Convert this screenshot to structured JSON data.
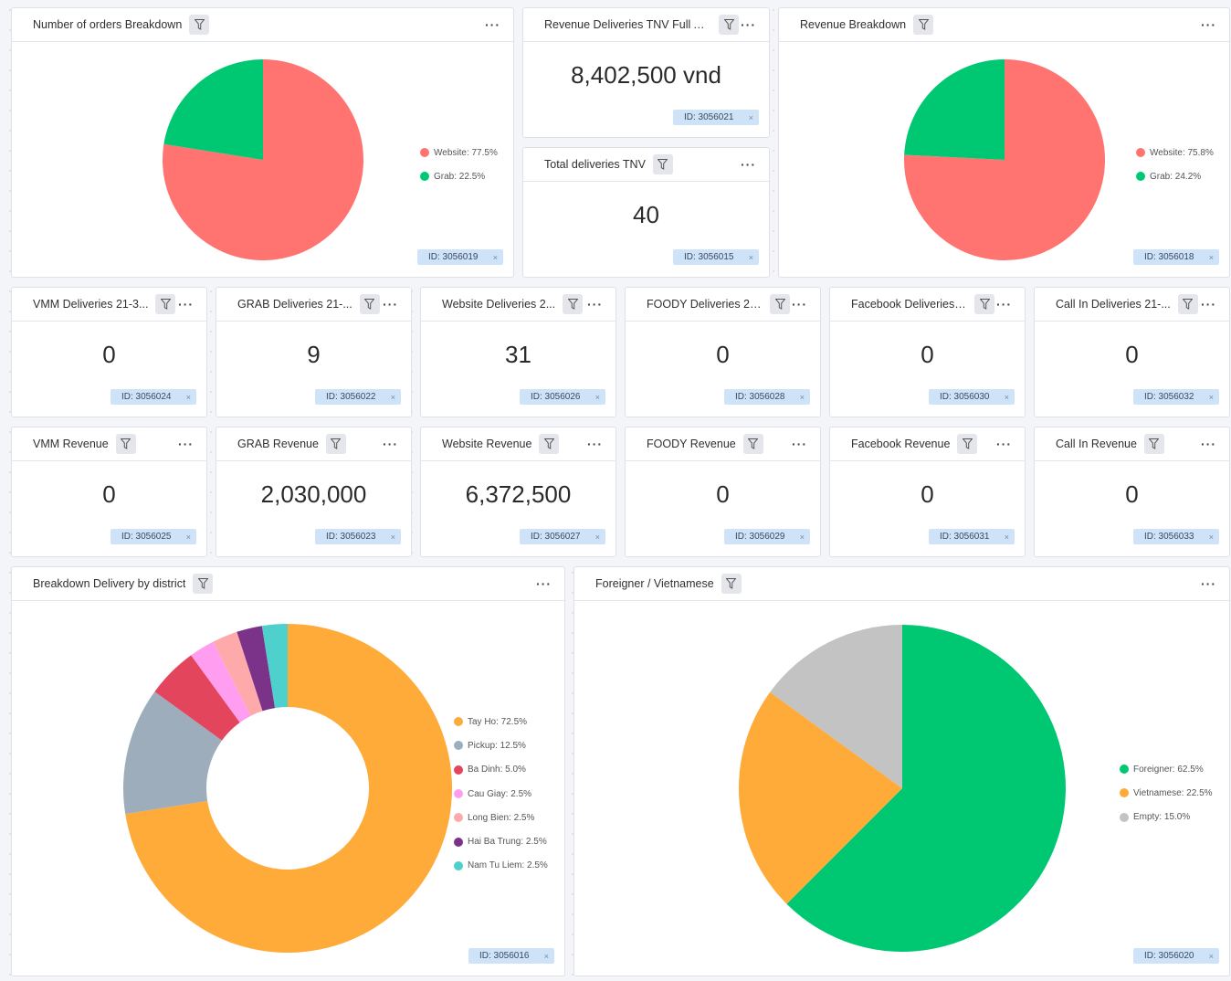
{
  "cards": {
    "orders_breakdown": {
      "title": "Number of orders Breakdown",
      "id_label": "ID: 3056019"
    },
    "revenue_tnv": {
      "title": "Revenue Deliveries TNV Full Ap...",
      "value": "8,402,500 vnd",
      "id_label": "ID: 3056021"
    },
    "total_tnv": {
      "title": "Total deliveries TNV",
      "value": "40",
      "id_label": "ID: 3056015"
    },
    "revenue_breakdown": {
      "title": "Revenue Breakdown",
      "id_label": "ID: 3056018"
    },
    "vmm_deliveries": {
      "title": "VMM Deliveries 21-3...",
      "value": "0",
      "id_label": "ID: 3056024"
    },
    "grab_deliveries": {
      "title": "GRAB Deliveries 21-...",
      "value": "9",
      "id_label": "ID: 3056022"
    },
    "website_deliveries": {
      "title": "Website Deliveries 2...",
      "value": "31",
      "id_label": "ID: 3056026"
    },
    "foody_deliveries": {
      "title": "FOODY Deliveries 21...",
      "value": "0",
      "id_label": "ID: 3056028"
    },
    "facebook_deliveries": {
      "title": "Facebook Deliveries ...",
      "value": "0",
      "id_label": "ID: 3056030"
    },
    "callin_deliveries": {
      "title": "Call In Deliveries 21-...",
      "value": "0",
      "id_label": "ID: 3056032"
    },
    "vmm_revenue": {
      "title": "VMM Revenue",
      "value": "0",
      "id_label": "ID: 3056025"
    },
    "grab_revenue": {
      "title": "GRAB Revenue",
      "value": "2,030,000",
      "id_label": "ID: 3056023"
    },
    "website_revenue": {
      "title": "Website Revenue",
      "value": "6,372,500",
      "id_label": "ID: 3056027"
    },
    "foody_revenue": {
      "title": "FOODY Revenue",
      "value": "0",
      "id_label": "ID: 3056029"
    },
    "facebook_revenue": {
      "title": "Facebook Revenue",
      "value": "0",
      "id_label": "ID: 3056031"
    },
    "callin_revenue": {
      "title": "Call In Revenue",
      "value": "0",
      "id_label": "ID: 3056033"
    },
    "district": {
      "title": "Breakdown Delivery by district",
      "id_label": "ID: 3056016"
    },
    "nationality": {
      "title": "Foreigner / Vietnamese",
      "id_label": "ID: 3056020"
    }
  },
  "icons": {
    "filter": "filter-funnel-icon",
    "more": "more-horizontal-icon",
    "remove": "close-icon"
  },
  "ui_text": {
    "more": "···",
    "remove": "×"
  },
  "chart_data": [
    {
      "type": "pie",
      "card": "orders_breakdown",
      "legend_position": "right",
      "slices": [
        {
          "label": "Website",
          "value": 77.5,
          "legend": "Website: 77.5%",
          "color": "#ff7370"
        },
        {
          "label": "Grab",
          "value": 22.5,
          "legend": "Grab: 22.5%",
          "color": "#00c872"
        }
      ]
    },
    {
      "type": "pie",
      "card": "revenue_breakdown",
      "legend_position": "right",
      "slices": [
        {
          "label": "Website",
          "value": 75.8,
          "legend": "Website: 75.8%",
          "color": "#ff7370"
        },
        {
          "label": "Grab",
          "value": 24.2,
          "legend": "Grab: 24.2%",
          "color": "#00c872"
        }
      ]
    },
    {
      "type": "donut",
      "card": "district",
      "legend_position": "right",
      "slices": [
        {
          "label": "Tay Ho",
          "value": 72.5,
          "legend": "Tay Ho: 72.5%",
          "color": "#ffab3a"
        },
        {
          "label": "Pickup",
          "value": 12.5,
          "legend": "Pickup: 12.5%",
          "color": "#9eadbb"
        },
        {
          "label": "Ba Dinh",
          "value": 5.0,
          "legend": "Ba Dinh: 5.0%",
          "color": "#e2455c"
        },
        {
          "label": "Cau Giay",
          "value": 2.5,
          "legend": "Cau Giay: 2.5%",
          "color": "#ff9ef0"
        },
        {
          "label": "Long Bien",
          "value": 2.5,
          "legend": "Long Bien: 2.5%",
          "color": "#ffaaaa"
        },
        {
          "label": "Hai Ba Trung",
          "value": 2.5,
          "legend": "Hai Ba Trung: 2.5%",
          "color": "#7b3289"
        },
        {
          "label": "Nam Tu Liem",
          "value": 2.5,
          "legend": "Nam Tu Liem: 2.5%",
          "color": "#4ed0cc"
        }
      ]
    },
    {
      "type": "pie",
      "card": "nationality",
      "legend_position": "right",
      "slices": [
        {
          "label": "Foreigner",
          "value": 62.5,
          "legend": "Foreigner: 62.5%",
          "color": "#00c872"
        },
        {
          "label": "Vietnamese",
          "value": 22.5,
          "legend": "Vietnamese: 22.5%",
          "color": "#ffab3a"
        },
        {
          "label": "Empty",
          "value": 15.0,
          "legend": "Empty: 15.0%",
          "color": "#c3c3c3"
        }
      ]
    }
  ]
}
